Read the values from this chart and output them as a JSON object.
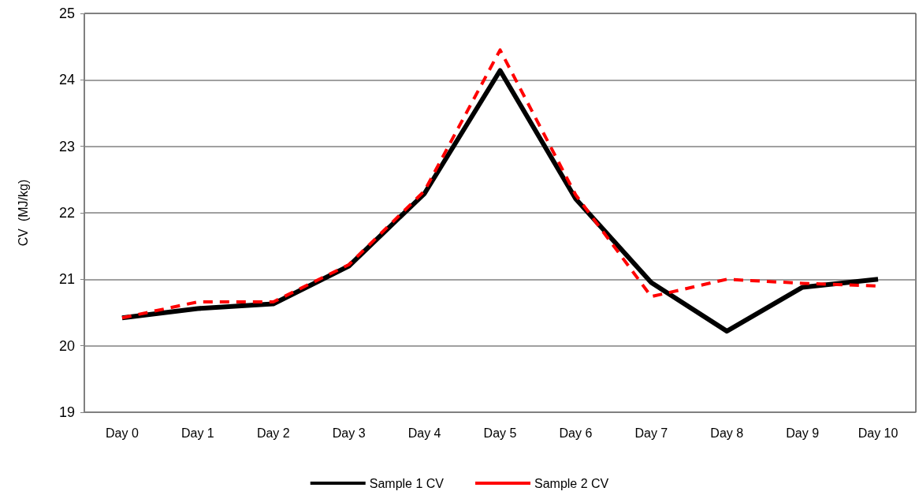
{
  "chart_data": {
    "type": "line",
    "ylabel": "CV  (MJ/kg)",
    "categories": [
      "Day 0",
      "Day 1",
      "Day 2",
      "Day 3",
      "Day 4",
      "Day 5",
      "Day 6",
      "Day 7",
      "Day 8",
      "Day 9",
      "Day 10"
    ],
    "series": [
      {
        "name": "Sample 1 CV",
        "color": "#000000",
        "line_style": "solid",
        "values": [
          20.42,
          20.56,
          20.63,
          21.2,
          22.29,
          24.14,
          22.21,
          20.95,
          20.22,
          20.88,
          21.0
        ]
      },
      {
        "name": "Sample 2 CV",
        "color": "#ff0000",
        "line_style": "dashed",
        "values": [
          20.42,
          20.66,
          20.66,
          21.22,
          22.33,
          24.45,
          22.27,
          20.74,
          21.0,
          20.94,
          20.9
        ]
      }
    ],
    "ylim": [
      19,
      25
    ],
    "yticks": [
      19,
      20,
      21,
      22,
      23,
      24,
      25
    ],
    "grid": "y",
    "legend": "bottom",
    "marker": "none"
  }
}
